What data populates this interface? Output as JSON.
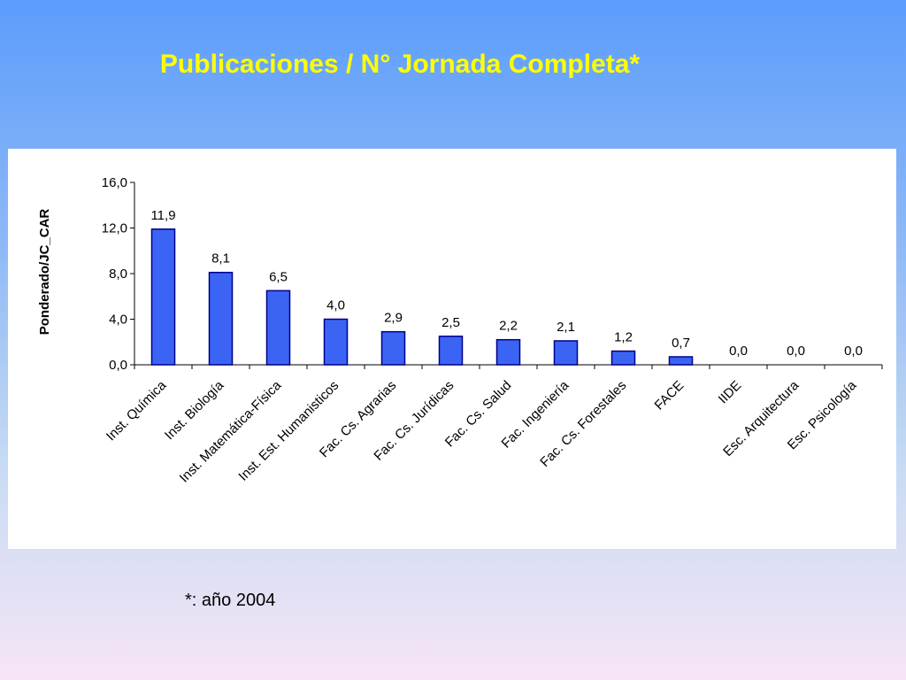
{
  "slide": {
    "title": "Publicaciones / N° Jornada Completa*",
    "footnote": "*: año 2004"
  },
  "colors": {
    "bar_fill": "#3c64f4",
    "bar_stroke": "#00008b",
    "title": "#ffff00"
  },
  "chart_data": {
    "type": "bar",
    "title": "",
    "xlabel": "",
    "ylabel": "Ponderado/JC_CAR",
    "ylim": [
      0,
      16
    ],
    "yticks": [
      "0,0",
      "4,0",
      "8,0",
      "12,0",
      "16,0"
    ],
    "ytick_values": [
      0,
      4,
      8,
      12,
      16
    ],
    "categories": [
      "Inst. Química",
      "Inst. Biología",
      "Inst. Matemática-Física",
      "Inst. Est. Humanisticos",
      "Fac. Cs. Agrarias",
      "Fac. Cs. Jurídicas",
      "Fac. Cs. Salud",
      "Fac. Ingeniería",
      "Fac. Cs. Forestales",
      "FACE",
      "IIDE",
      "Esc. Arquitectura",
      "Esc. Psicología"
    ],
    "values": [
      11.9,
      8.1,
      6.5,
      4.0,
      2.9,
      2.5,
      2.2,
      2.1,
      1.2,
      0.7,
      0.0,
      0.0,
      0.0
    ],
    "value_labels": [
      "11,9",
      "8,1",
      "6,5",
      "4,0",
      "2,9",
      "2,5",
      "2,2",
      "2,1",
      "1,2",
      "0,7",
      "0,0",
      "0,0",
      "0,0"
    ],
    "grid": false,
    "legend": "none"
  }
}
